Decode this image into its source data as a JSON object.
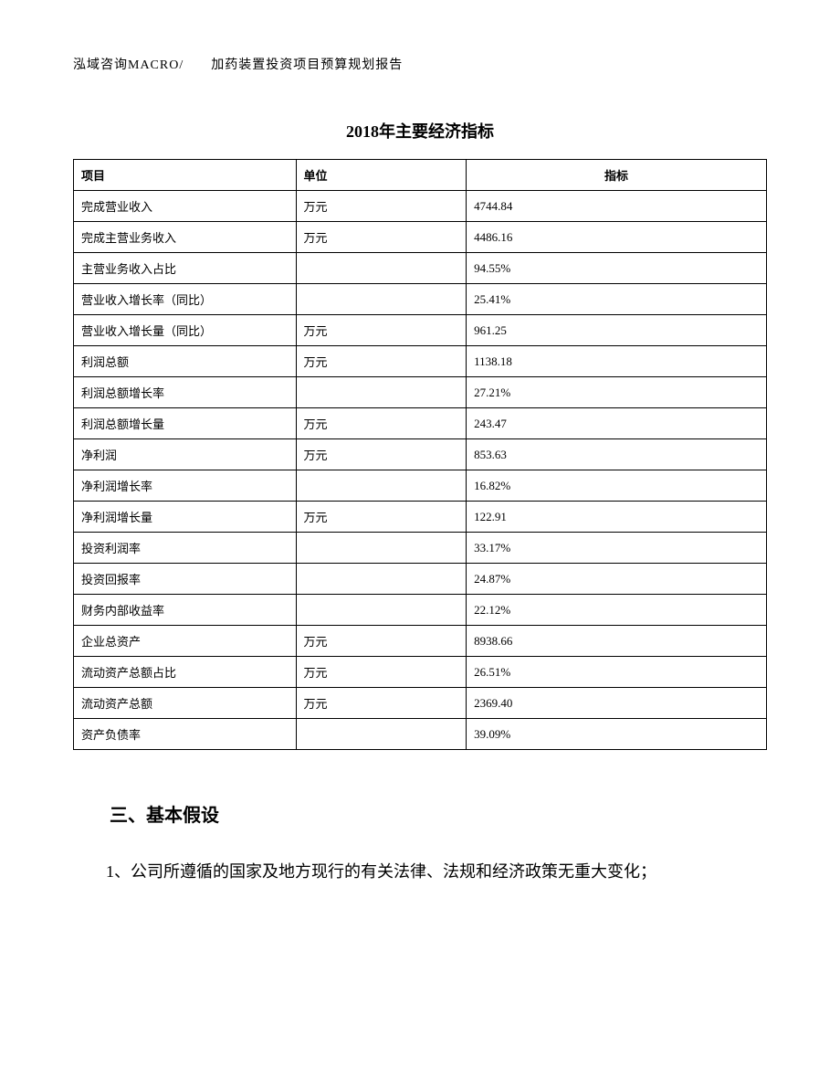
{
  "header": {
    "text": "泓域咨询MACRO/　　加药装置投资项目预算规划报告"
  },
  "table": {
    "title": "2018年主要经济指标",
    "columns": [
      "项目",
      "单位",
      "指标"
    ],
    "rows": [
      {
        "item": "完成营业收入",
        "unit": "万元",
        "value": "4744.84"
      },
      {
        "item": "完成主营业务收入",
        "unit": "万元",
        "value": "4486.16"
      },
      {
        "item": "主营业务收入占比",
        "unit": "",
        "value": "94.55%"
      },
      {
        "item": "营业收入增长率（同比）",
        "unit": "",
        "value": "25.41%"
      },
      {
        "item": "营业收入增长量（同比）",
        "unit": "万元",
        "value": "961.25"
      },
      {
        "item": "利润总额",
        "unit": "万元",
        "value": "1138.18"
      },
      {
        "item": "利润总额增长率",
        "unit": "",
        "value": "27.21%"
      },
      {
        "item": "利润总额增长量",
        "unit": "万元",
        "value": "243.47"
      },
      {
        "item": "净利润",
        "unit": "万元",
        "value": "853.63"
      },
      {
        "item": "净利润增长率",
        "unit": "",
        "value": "16.82%"
      },
      {
        "item": "净利润增长量",
        "unit": "万元",
        "value": "122.91"
      },
      {
        "item": "投资利润率",
        "unit": "",
        "value": "33.17%"
      },
      {
        "item": "投资回报率",
        "unit": "",
        "value": "24.87%"
      },
      {
        "item": "财务内部收益率",
        "unit": "",
        "value": "22.12%"
      },
      {
        "item": "企业总资产",
        "unit": "万元",
        "value": "8938.66"
      },
      {
        "item": "流动资产总额占比",
        "unit": "万元",
        "value": "26.51%"
      },
      {
        "item": "流动资产总额",
        "unit": "万元",
        "value": "2369.40"
      },
      {
        "item": "资产负债率",
        "unit": "",
        "value": "39.09%"
      }
    ]
  },
  "section": {
    "heading": "三、基本假设",
    "para1": "1、公司所遵循的国家及地方现行的有关法律、法规和经济政策无重大变化；"
  },
  "style": {
    "text_color": "#000000",
    "background_color": "#ffffff",
    "border_color": "#000000",
    "title_fontsize": 18,
    "cell_fontsize": 13,
    "heading_fontsize": 20,
    "body_fontsize": 18
  }
}
